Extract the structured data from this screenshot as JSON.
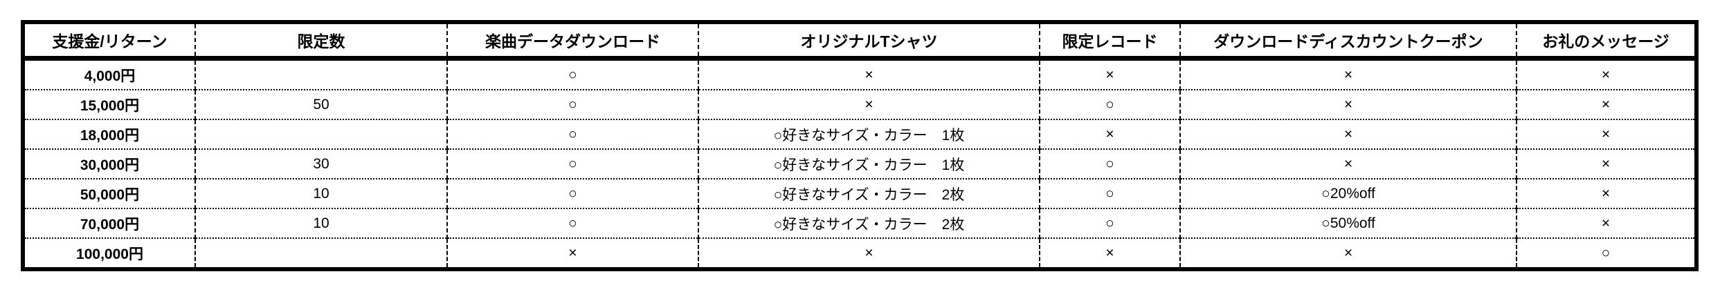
{
  "headers": [
    "支援金/リターン",
    "限定数",
    "楽曲データダウンロード",
    "オリジナルTシャツ",
    "限定レコード",
    "ダウンロードディスカウントクーポン",
    "お礼のメッセージ"
  ],
  "rows": [
    [
      "4,000円",
      "",
      "○",
      "×",
      "×",
      "×",
      "×"
    ],
    [
      "15,000円",
      "50",
      "○",
      "×",
      "○",
      "×",
      "×"
    ],
    [
      "18,000円",
      "",
      "○",
      "○好きなサイズ・カラー　1枚",
      "×",
      "×",
      "×"
    ],
    [
      "30,000円",
      "30",
      "○",
      "○好きなサイズ・カラー　1枚",
      "○",
      "×",
      "×"
    ],
    [
      "50,000円",
      "10",
      "○",
      "○好きなサイズ・カラー　2枚",
      "○",
      "○20%off",
      "×"
    ],
    [
      "70,000円",
      "10",
      "○",
      "○好きなサイズ・カラー　2枚",
      "○",
      "○50%off",
      "×"
    ],
    [
      "100,000円",
      "",
      "×",
      "×",
      "×",
      "×",
      "○"
    ]
  ]
}
